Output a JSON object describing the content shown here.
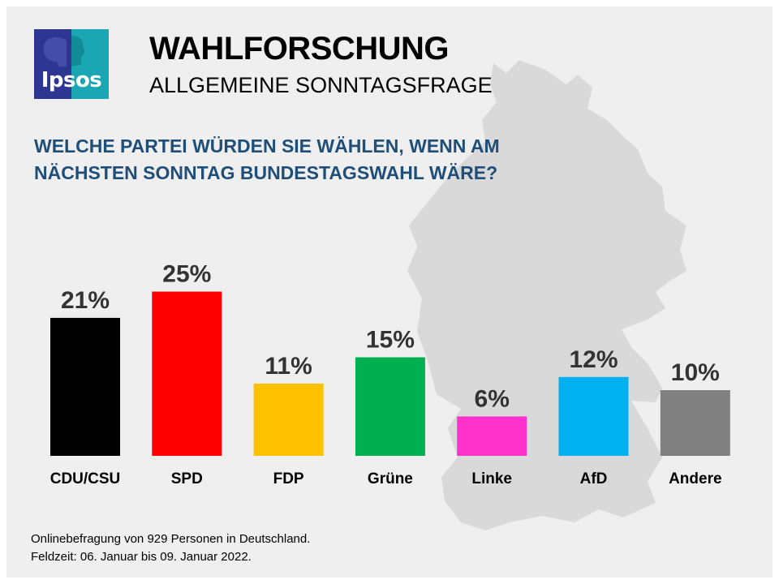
{
  "header": {
    "logo_text": "Ipsos",
    "title": "WAHLFORSCHUNG",
    "subtitle": "ALLGEMEINE SONNTAGSFRAGE",
    "question_line1": "WELCHE PARTEI WÜRDEN SIE WÄHLEN, WENN AM",
    "question_line2": "NÄCHSTEN SONNTAG BUNDESTAGSWAHL WÄRE?"
  },
  "chart_data": {
    "type": "bar",
    "title": "",
    "xlabel": "",
    "ylabel": "",
    "ylim": [
      0,
      25
    ],
    "grid": false,
    "categories": [
      "CDU/CSU",
      "SPD",
      "FDP",
      "Grüne",
      "Linke",
      "AfD",
      "Andere"
    ],
    "values": [
      21,
      25,
      11,
      15,
      6,
      12,
      10
    ],
    "value_labels": [
      "21%",
      "25%",
      "11%",
      "15%",
      "6%",
      "12%",
      "10%"
    ],
    "colors": [
      "#000000",
      "#ff0000",
      "#ffc000",
      "#00b050",
      "#ff33cc",
      "#00b0f0",
      "#808080"
    ]
  },
  "footnote": {
    "line1": "Onlinebefragung  von 929 Personen in Deutschland.",
    "line2": "Feldzeit: 06. Januar  bis 09. Januar 2022."
  },
  "colors": {
    "frame_background": "#efefef",
    "map_fill": "#d9d9d9",
    "question_text": "#1f4e79",
    "logo_dark": "#2d3691",
    "logo_teal": "#1aa7b3"
  }
}
